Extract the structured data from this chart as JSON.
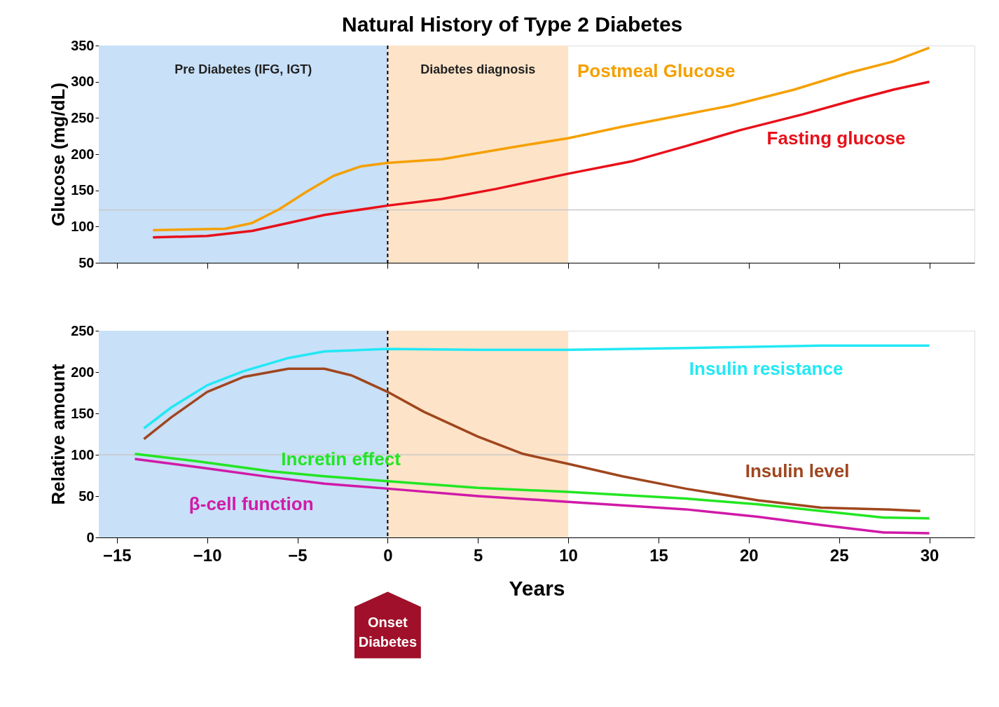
{
  "chart_data": [
    {
      "type": "line",
      "title": "Natural History of Type 2 Diabetes",
      "ylabel": "Glucose  (mg/dL)",
      "xlim": [
        -16,
        32.5
      ],
      "xticks": [
        -15,
        -10,
        -5,
        0,
        5,
        10,
        15,
        20,
        25,
        30
      ],
      "ylim": [
        50,
        350
      ],
      "yticks": [
        50,
        100,
        150,
        200,
        250,
        300,
        350
      ],
      "tick_labels": "y",
      "grid": false,
      "series": [
        {
          "name": "Postmeal Glucose",
          "color": "#f5a000",
          "x": [
            -13,
            -9,
            -7.5,
            -6,
            -4.5,
            -3,
            -1.5,
            0,
            3,
            7,
            10,
            13,
            16.5,
            19,
            22.5,
            25.5,
            28,
            30
          ],
          "values": [
            95,
            97,
            105,
            124,
            148,
            170,
            183,
            188,
            193,
            210,
            222,
            238,
            255,
            267,
            289,
            312,
            328,
            347
          ]
        },
        {
          "name": "Fasting glucose",
          "color": "#e8101a",
          "x": [
            -13,
            -10,
            -7.5,
            -5.5,
            -3.5,
            0,
            3,
            6,
            10,
            13.5,
            16.5,
            19.5,
            23,
            26,
            28,
            30
          ],
          "values": [
            85,
            87,
            94,
            105,
            116,
            129,
            138,
            152,
            173,
            190,
            211,
            233,
            255,
            276,
            289,
            300
          ]
        }
      ],
      "bands": [
        {
          "axis": "x",
          "from": -16,
          "to": 0,
          "color": "#c8e0f8",
          "label": "Pre Diabetes (IFG, IGT)"
        },
        {
          "axis": "x",
          "from": 0,
          "to": 10,
          "color": "#fde3c8",
          "label": "Diabetes diagnosis"
        }
      ],
      "ref_lines": [
        {
          "axis": "x",
          "value": 0,
          "color": "#000000",
          "line_style": "dashed"
        },
        {
          "axis": "y",
          "value": 123,
          "color": "#c8c8c8",
          "line_style": "solid"
        }
      ]
    },
    {
      "type": "line",
      "ylabel": "Relative amount",
      "xlabel": "Years",
      "xlim": [
        -16,
        32.5
      ],
      "xticks": [
        -15,
        -10,
        -5,
        0,
        5,
        10,
        15,
        20,
        25,
        30
      ],
      "ylim": [
        0,
        250
      ],
      "yticks": [
        0,
        50,
        100,
        150,
        200,
        250
      ],
      "grid": false,
      "series": [
        {
          "name": "Insulin resistance",
          "color": "#22e8f5",
          "x": [
            -13.5,
            -12,
            -10,
            -8,
            -5.5,
            -3.5,
            0,
            5,
            10,
            16.5,
            24,
            30
          ],
          "values": [
            132,
            157,
            184,
            201,
            217,
            225,
            228,
            227,
            227,
            229,
            232,
            232
          ]
        },
        {
          "name": "Insulin level",
          "color": "#a0461e",
          "x": [
            -13.5,
            -12,
            -10,
            -8,
            -5.5,
            -3.5,
            -2,
            0,
            2,
            5,
            7.5,
            10,
            13,
            16.5,
            20.5,
            24,
            27.5,
            29.5
          ],
          "values": [
            119,
            145,
            176,
            194,
            204,
            204,
            196,
            176,
            152,
            122,
            101,
            89,
            74,
            59,
            45,
            36,
            34,
            32
          ]
        },
        {
          "name": "Incretin effect",
          "color": "#22e622",
          "x": [
            -14,
            -10.5,
            -6.5,
            -3.5,
            0,
            5,
            10,
            16.5,
            20.5,
            24,
            27.5,
            30
          ],
          "values": [
            101,
            92,
            80,
            74,
            68,
            60,
            55,
            47,
            40,
            32,
            24,
            23
          ]
        },
        {
          "name": "β-cell function",
          "color": "#d01aa8",
          "x": [
            -14,
            -10.5,
            -6.5,
            -3.5,
            0,
            5,
            10,
            16.5,
            20.5,
            24,
            27.5,
            30
          ],
          "values": [
            95,
            85,
            73,
            65,
            59,
            50,
            43,
            34,
            25,
            15,
            6,
            5
          ]
        }
      ],
      "bands": [
        {
          "axis": "x",
          "from": -16,
          "to": 0,
          "color": "#c8e0f8"
        },
        {
          "axis": "x",
          "from": 0,
          "to": 10,
          "color": "#fde3c8"
        }
      ],
      "ref_lines": [
        {
          "axis": "x",
          "value": 0,
          "color": "#000000",
          "line_style": "dashed"
        },
        {
          "axis": "y",
          "value": 100,
          "color": "#c8c8c8",
          "line_style": "solid"
        }
      ],
      "annotations": [
        "Onset Diabetes"
      ]
    }
  ]
}
